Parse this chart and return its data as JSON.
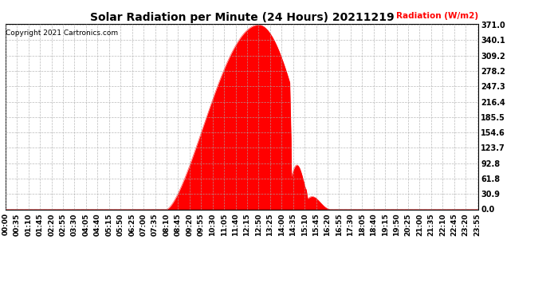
{
  "title": "Solar Radiation per Minute (24 Hours) 20211219",
  "copyright_text": "Copyright 2021 Cartronics.com",
  "ylabel": "Radiation (W/m2)",
  "ylabel_color": "#ff0000",
  "background_color": "#ffffff",
  "fill_color": "#ff0000",
  "line_color": "#ff0000",
  "ymax": 371.0,
  "yticks": [
    0.0,
    30.9,
    61.8,
    92.8,
    123.7,
    154.6,
    185.5,
    216.4,
    247.3,
    278.2,
    309.2,
    340.1,
    371.0
  ],
  "grid_color": "#aaaaaa",
  "dashed_line_color": "#ff0000",
  "total_minutes": 1440,
  "sunrise_minute": 490,
  "sunset_minute": 990,
  "peak_minute": 770,
  "peak_value": 371.0,
  "tick_interval": 35,
  "title_fontsize": 10,
  "tick_fontsize": 6.5,
  "ytick_fontsize": 7
}
